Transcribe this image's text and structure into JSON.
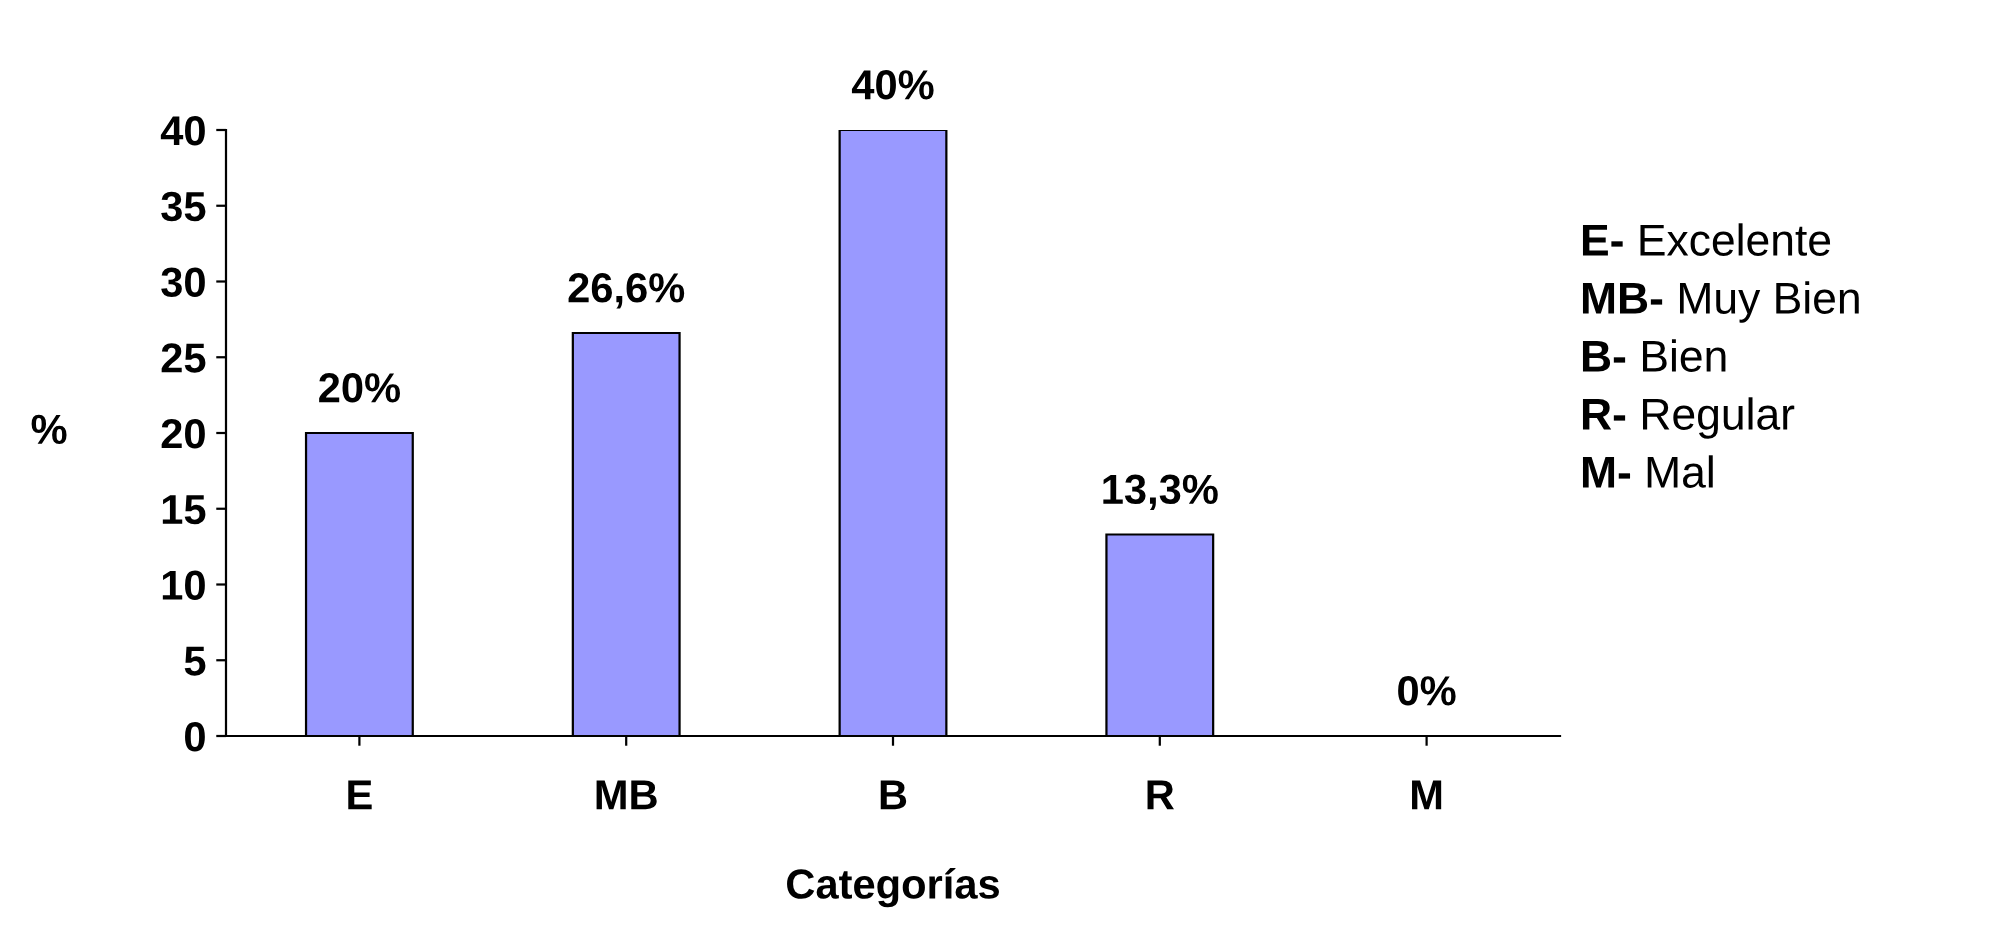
{
  "chart_data": {
    "type": "bar",
    "xlabel": "Categorías",
    "ylabel": "%",
    "categories": [
      "E",
      "MB",
      "B",
      "R",
      "M"
    ],
    "values": [
      20,
      26.6,
      40,
      13.3,
      0
    ],
    "value_labels": [
      "20%",
      "26,6%",
      "40%",
      "13,3%",
      "0%"
    ],
    "color": "#9999ff",
    "ylim": [
      0,
      40
    ],
    "yticks": [
      0,
      5,
      10,
      15,
      20,
      25,
      30,
      35,
      40
    ],
    "grid": false,
    "legend": false,
    "annotations": [
      "E- Excelente",
      "MB- Muy Bien",
      "B- Bien",
      "R- Regular",
      "M- Mal"
    ]
  }
}
